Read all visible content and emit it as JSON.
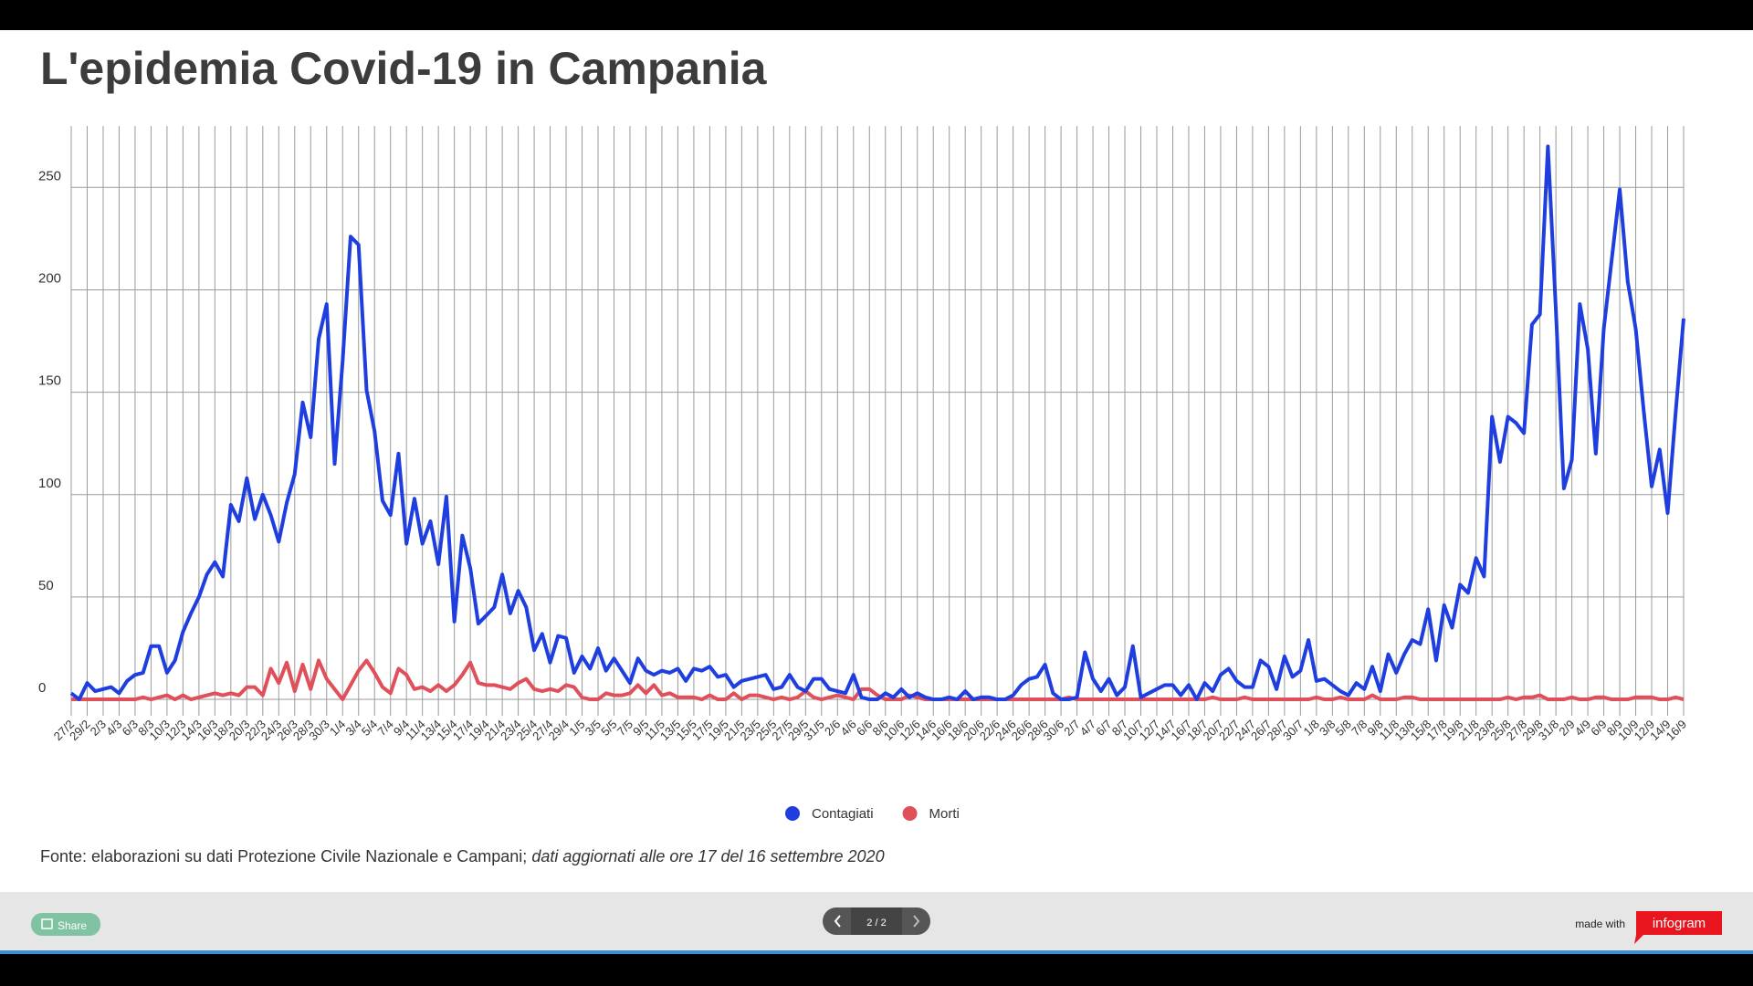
{
  "chart_data": {
    "type": "line",
    "title": "L'epidemia Covid-19 in Campania",
    "source": "Fonte: elaborazioni su dati Protezione Civile Nazionale e Campani;",
    "source_note": "dati aggiornati alle ore 17 del 16 settembre 2020",
    "categories": [
      "27/2",
      null,
      "29/2",
      null,
      "2/3",
      null,
      "4/3",
      null,
      "6/3",
      null,
      "8/3",
      null,
      "10/3",
      null,
      "12/3",
      null,
      "14/3",
      null,
      "16/3",
      null,
      "18/3",
      null,
      "20/3",
      null,
      "22/3",
      null,
      "24/3",
      null,
      "26/3",
      null,
      "28/3",
      null,
      "30/3",
      null,
      "1/4",
      null,
      "3/4",
      null,
      "5/4",
      null,
      "7/4",
      null,
      "9/4",
      null,
      "11/4",
      null,
      "13/4",
      null,
      "15/4",
      null,
      "17/4",
      null,
      "19/4",
      null,
      "21/4",
      null,
      "23/4",
      null,
      "25/4",
      null,
      "27/4",
      null,
      "29/4",
      null,
      "1/5",
      null,
      "3/5",
      null,
      "5/5",
      null,
      "7/5",
      null,
      "9/5",
      null,
      "11/5",
      null,
      "13/5",
      null,
      "15/5",
      null,
      "17/5",
      null,
      "19/5",
      null,
      "21/5",
      null,
      "23/5",
      null,
      "25/5",
      null,
      "27/5",
      null,
      "29/5",
      null,
      "31/5",
      null,
      "2/6",
      null,
      "4/6",
      null,
      "6/6",
      null,
      "8/6",
      null,
      "10/6",
      null,
      "12/6",
      null,
      "14/6",
      null,
      "16/6",
      null,
      "18/6",
      null,
      "20/6",
      null,
      "22/6",
      null,
      "24/6",
      null,
      "26/6",
      null,
      "28/6",
      null,
      "30/6",
      null,
      "2/7",
      null,
      "4/7",
      null,
      "6/7",
      null,
      "8/7",
      null,
      "10/7",
      null,
      "12/7",
      null,
      "14/7",
      null,
      "16/7",
      null,
      "18/7",
      null,
      "20/7",
      null,
      "22/7",
      null,
      "24/7",
      null,
      "26/7",
      null,
      "28/7",
      null,
      "30/7",
      null,
      "1/8",
      null,
      "3/8",
      null,
      "5/8",
      null,
      "7/8",
      null,
      "9/8",
      null,
      "11/8",
      null,
      "13/8",
      null,
      "15/8",
      null,
      "17/8",
      null,
      "19/8",
      null,
      "21/8",
      null,
      "23/8",
      null,
      "25/8",
      null,
      "27/8",
      null,
      "29/8",
      null,
      "31/8",
      null,
      "2/9",
      null,
      "4/9",
      null,
      "6/9",
      null,
      "8/9",
      null,
      "10/9",
      null,
      "12/9",
      null,
      "14/9",
      null,
      "16/9"
    ],
    "series": [
      {
        "name": "Contagiati",
        "color": "#1f3ee0",
        "values": [
          3,
          0,
          8,
          4,
          5,
          6,
          3,
          9,
          12,
          13,
          26,
          26,
          13,
          19,
          33,
          42,
          50,
          61,
          67,
          60,
          95,
          87,
          108,
          88,
          100,
          90,
          77,
          96,
          110,
          145,
          128,
          176,
          193,
          115,
          165,
          226,
          222,
          151,
          131,
          97,
          90,
          120,
          76,
          98,
          76,
          87,
          66,
          99,
          38,
          80,
          64,
          37,
          41,
          45,
          61,
          42,
          53,
          45,
          24,
          32,
          18,
          31,
          30,
          13,
          21,
          15,
          25,
          14,
          20,
          14,
          8,
          20,
          14,
          12,
          14,
          13,
          15,
          9,
          15,
          14,
          16,
          11,
          12,
          6,
          9,
          10,
          11,
          12,
          5,
          6,
          12,
          6,
          4,
          10,
          10,
          5,
          4,
          3,
          12,
          1,
          0,
          0,
          3,
          1,
          5,
          1,
          3,
          1,
          0,
          0,
          1,
          0,
          4,
          0,
          1,
          1,
          0,
          0,
          2,
          7,
          10,
          11,
          17,
          3,
          0,
          0,
          1,
          23,
          10,
          4,
          10,
          2,
          6,
          26,
          1,
          3,
          5,
          7,
          7,
          2,
          7,
          0,
          8,
          4,
          12,
          15,
          9,
          6,
          6,
          19,
          16,
          5,
          21,
          11,
          14,
          29,
          9,
          10,
          7,
          4,
          2,
          8,
          5,
          16,
          4,
          22,
          13,
          22,
          29,
          27,
          44,
          19,
          46,
          35,
          56,
          52,
          69,
          60,
          138,
          116,
          138,
          135,
          130,
          183,
          188,
          270,
          190,
          103,
          117,
          193,
          171,
          120,
          181,
          215,
          249,
          204,
          181,
          141,
          104,
          122,
          91,
          140,
          186
        ]
      },
      {
        "name": "Morti",
        "color": "#e0505a",
        "values": [
          0,
          0,
          0,
          0,
          0,
          0,
          0,
          0,
          0,
          1,
          0,
          1,
          2,
          0,
          2,
          0,
          1,
          2,
          3,
          2,
          3,
          2,
          6,
          6,
          2,
          15,
          8,
          18,
          4,
          17,
          5,
          19,
          10,
          5,
          0,
          7,
          14,
          19,
          13,
          6,
          3,
          15,
          12,
          5,
          6,
          4,
          7,
          4,
          7,
          12,
          18,
          8,
          7,
          7,
          6,
          5,
          8,
          10,
          5,
          4,
          5,
          4,
          7,
          6,
          1,
          0,
          0,
          3,
          2,
          2,
          3,
          7,
          3,
          7,
          2,
          3,
          1,
          1,
          1,
          0,
          2,
          0,
          0,
          3,
          0,
          2,
          2,
          1,
          0,
          1,
          0,
          1,
          4,
          1,
          0,
          1,
          2,
          1,
          0,
          5,
          5,
          2,
          0,
          0,
          0,
          2,
          1,
          0,
          0,
          0,
          0,
          0,
          0,
          0,
          0,
          0,
          0,
          0,
          0,
          0,
          0,
          0,
          0,
          0,
          0,
          1,
          0,
          0,
          0,
          0,
          0,
          0,
          0,
          0,
          0,
          0,
          0,
          0,
          0,
          0,
          0,
          0,
          0,
          1,
          0,
          0,
          0,
          1,
          0,
          0,
          0,
          0,
          0,
          0,
          0,
          0,
          1,
          0,
          0,
          1,
          0,
          0,
          0,
          2,
          0,
          0,
          0,
          1,
          1,
          0,
          0,
          0,
          0,
          0,
          0,
          0,
          0,
          0,
          0,
          0,
          1,
          0,
          1,
          1,
          2,
          0,
          0,
          0,
          1,
          0,
          0,
          1,
          1,
          0,
          0,
          0,
          1,
          1,
          1,
          0,
          0,
          1,
          0
        ]
      }
    ],
    "ylim": [
      -8,
      280
    ],
    "yticks": [
      0,
      50,
      100,
      150,
      200,
      250
    ],
    "grid": true,
    "legend": "bottom"
  },
  "footer": {
    "share": "Share",
    "pager": "2 / 2",
    "made_with": "made with",
    "brand": "infogram"
  }
}
